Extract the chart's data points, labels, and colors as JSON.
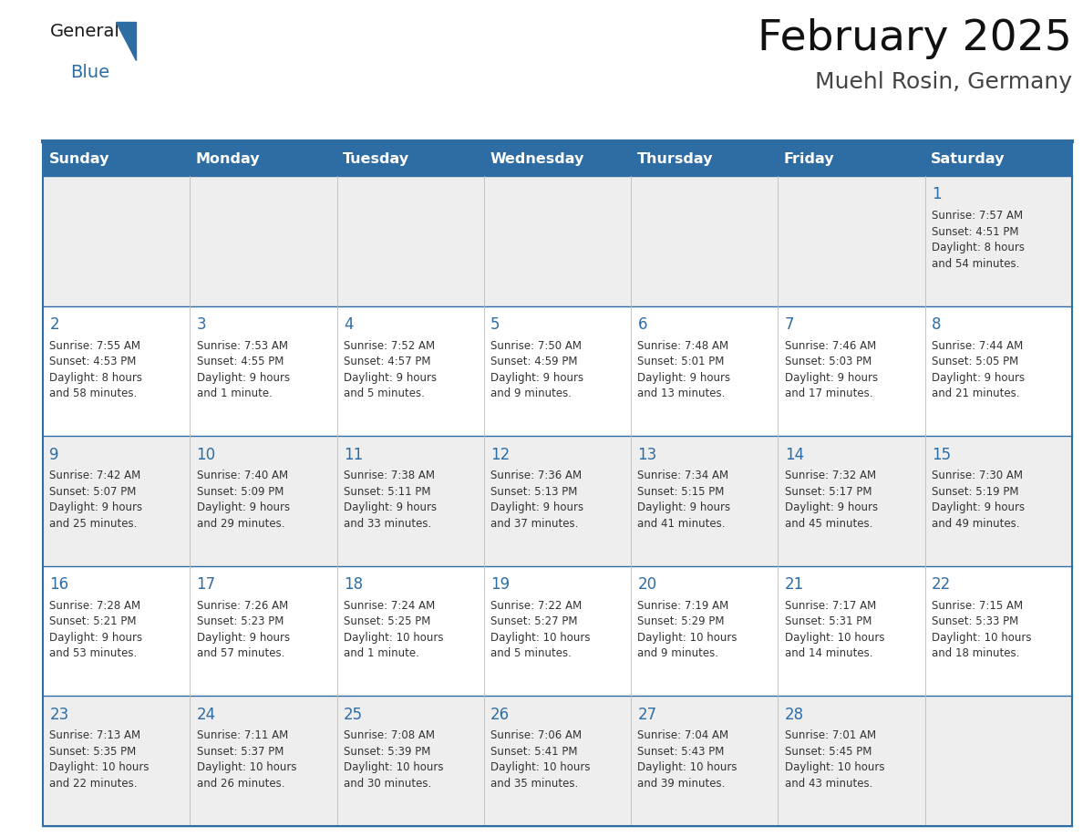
{
  "title": "February 2025",
  "subtitle": "Muehl Rosin, Germany",
  "header_color": "#2E6DA4",
  "header_text_color": "#FFFFFF",
  "background_color": "#FFFFFF",
  "cell_bg_light": "#F0F4F8",
  "cell_bg_white": "#FFFFFF",
  "day_headers": [
    "Sunday",
    "Monday",
    "Tuesday",
    "Wednesday",
    "Thursday",
    "Friday",
    "Saturday"
  ],
  "title_fontsize": 34,
  "subtitle_fontsize": 18,
  "header_fontsize": 11.5,
  "day_num_fontsize": 11,
  "info_fontsize": 8.5,
  "grid_color": "#2E6DA4",
  "text_color": "#333333",
  "num_color": "#2E6DA4",
  "line_color_thick": "#2E75B6",
  "calendar": [
    [
      null,
      null,
      null,
      null,
      null,
      null,
      {
        "day": 1,
        "sunrise": "7:57 AM",
        "sunset": "4:51 PM",
        "daylight": "8 hours\nand 54 minutes."
      }
    ],
    [
      {
        "day": 2,
        "sunrise": "7:55 AM",
        "sunset": "4:53 PM",
        "daylight": "8 hours\nand 58 minutes."
      },
      {
        "day": 3,
        "sunrise": "7:53 AM",
        "sunset": "4:55 PM",
        "daylight": "9 hours\nand 1 minute."
      },
      {
        "day": 4,
        "sunrise": "7:52 AM",
        "sunset": "4:57 PM",
        "daylight": "9 hours\nand 5 minutes."
      },
      {
        "day": 5,
        "sunrise": "7:50 AM",
        "sunset": "4:59 PM",
        "daylight": "9 hours\nand 9 minutes."
      },
      {
        "day": 6,
        "sunrise": "7:48 AM",
        "sunset": "5:01 PM",
        "daylight": "9 hours\nand 13 minutes."
      },
      {
        "day": 7,
        "sunrise": "7:46 AM",
        "sunset": "5:03 PM",
        "daylight": "9 hours\nand 17 minutes."
      },
      {
        "day": 8,
        "sunrise": "7:44 AM",
        "sunset": "5:05 PM",
        "daylight": "9 hours\nand 21 minutes."
      }
    ],
    [
      {
        "day": 9,
        "sunrise": "7:42 AM",
        "sunset": "5:07 PM",
        "daylight": "9 hours\nand 25 minutes."
      },
      {
        "day": 10,
        "sunrise": "7:40 AM",
        "sunset": "5:09 PM",
        "daylight": "9 hours\nand 29 minutes."
      },
      {
        "day": 11,
        "sunrise": "7:38 AM",
        "sunset": "5:11 PM",
        "daylight": "9 hours\nand 33 minutes."
      },
      {
        "day": 12,
        "sunrise": "7:36 AM",
        "sunset": "5:13 PM",
        "daylight": "9 hours\nand 37 minutes."
      },
      {
        "day": 13,
        "sunrise": "7:34 AM",
        "sunset": "5:15 PM",
        "daylight": "9 hours\nand 41 minutes."
      },
      {
        "day": 14,
        "sunrise": "7:32 AM",
        "sunset": "5:17 PM",
        "daylight": "9 hours\nand 45 minutes."
      },
      {
        "day": 15,
        "sunrise": "7:30 AM",
        "sunset": "5:19 PM",
        "daylight": "9 hours\nand 49 minutes."
      }
    ],
    [
      {
        "day": 16,
        "sunrise": "7:28 AM",
        "sunset": "5:21 PM",
        "daylight": "9 hours\nand 53 minutes."
      },
      {
        "day": 17,
        "sunrise": "7:26 AM",
        "sunset": "5:23 PM",
        "daylight": "9 hours\nand 57 minutes."
      },
      {
        "day": 18,
        "sunrise": "7:24 AM",
        "sunset": "5:25 PM",
        "daylight": "10 hours\nand 1 minute."
      },
      {
        "day": 19,
        "sunrise": "7:22 AM",
        "sunset": "5:27 PM",
        "daylight": "10 hours\nand 5 minutes."
      },
      {
        "day": 20,
        "sunrise": "7:19 AM",
        "sunset": "5:29 PM",
        "daylight": "10 hours\nand 9 minutes."
      },
      {
        "day": 21,
        "sunrise": "7:17 AM",
        "sunset": "5:31 PM",
        "daylight": "10 hours\nand 14 minutes."
      },
      {
        "day": 22,
        "sunrise": "7:15 AM",
        "sunset": "5:33 PM",
        "daylight": "10 hours\nand 18 minutes."
      }
    ],
    [
      {
        "day": 23,
        "sunrise": "7:13 AM",
        "sunset": "5:35 PM",
        "daylight": "10 hours\nand 22 minutes."
      },
      {
        "day": 24,
        "sunrise": "7:11 AM",
        "sunset": "5:37 PM",
        "daylight": "10 hours\nand 26 minutes."
      },
      {
        "day": 25,
        "sunrise": "7:08 AM",
        "sunset": "5:39 PM",
        "daylight": "10 hours\nand 30 minutes."
      },
      {
        "day": 26,
        "sunrise": "7:06 AM",
        "sunset": "5:41 PM",
        "daylight": "10 hours\nand 35 minutes."
      },
      {
        "day": 27,
        "sunrise": "7:04 AM",
        "sunset": "5:43 PM",
        "daylight": "10 hours\nand 39 minutes."
      },
      {
        "day": 28,
        "sunrise": "7:01 AM",
        "sunset": "5:45 PM",
        "daylight": "10 hours\nand 43 minutes."
      },
      null
    ]
  ]
}
